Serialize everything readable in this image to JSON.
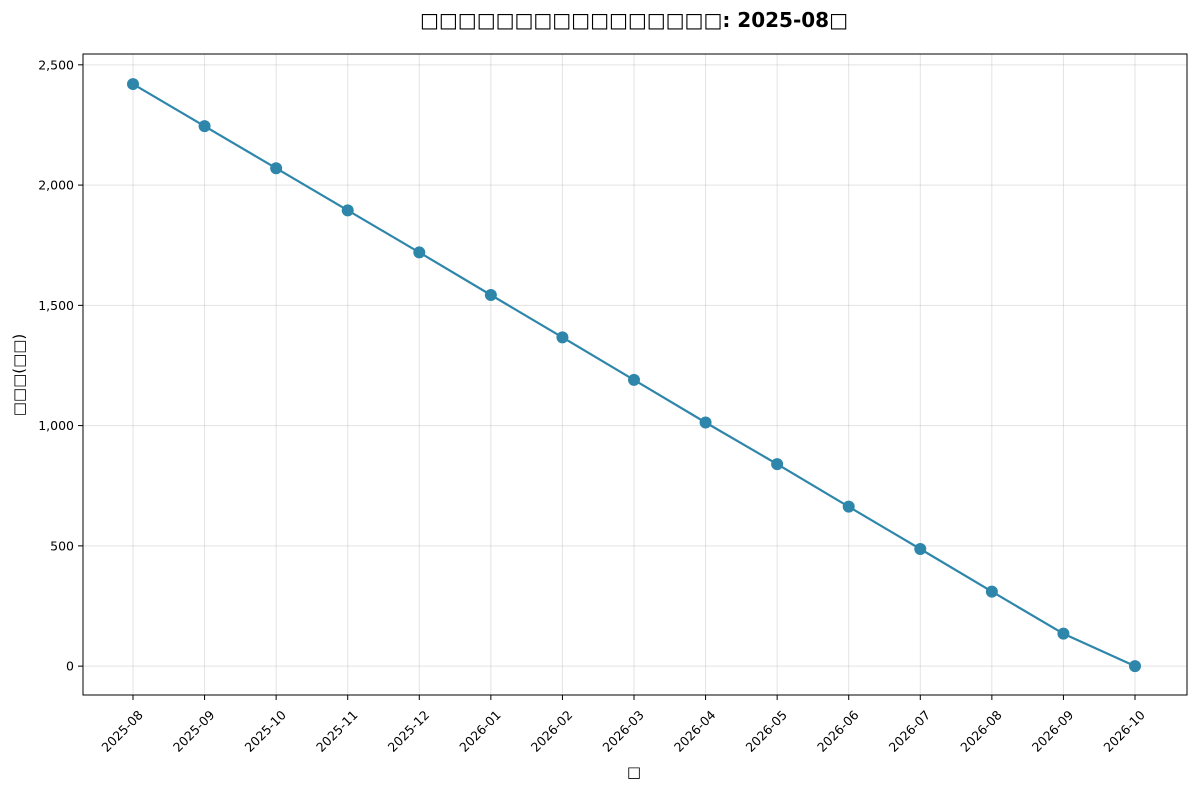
{
  "chart_data": {
    "type": "line",
    "title": "□□□□□□□□□□□□□□□□: 2025-08□",
    "xlabel": "□",
    "ylabel": "□□□(□□)",
    "categories": [
      "2025-08",
      "2025-09",
      "2025-10",
      "2025-11",
      "2025-12",
      "2026-01",
      "2026-02",
      "2026-03",
      "2026-04",
      "2026-05",
      "2026-06",
      "2026-07",
      "2026-08",
      "2026-09",
      "2026-10"
    ],
    "series": [
      {
        "values": [
          2420,
          2245,
          2070,
          1895,
          1720,
          1543,
          1367,
          1190,
          1013,
          840,
          663,
          487,
          310,
          135,
          0
        ]
      }
    ],
    "ylim": [
      -120,
      2545
    ],
    "yticks": [
      0,
      500,
      1000,
      1500,
      2000,
      2500
    ],
    "ytick_labels": [
      "0",
      "500",
      "1,000",
      "1,500",
      "2,000",
      "2,500"
    ],
    "grid": true,
    "colors": {
      "line": "#2e86ab",
      "marker": "#2e86ab"
    }
  }
}
